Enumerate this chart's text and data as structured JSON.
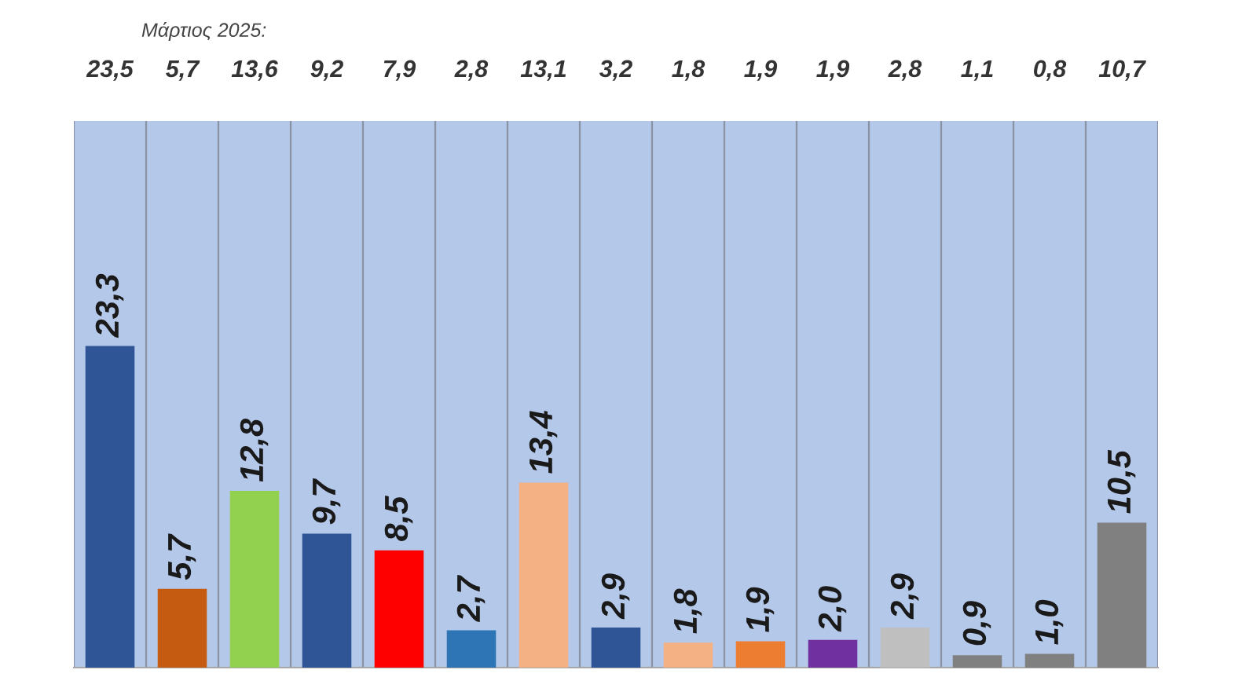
{
  "chart_data": {
    "type": "bar",
    "categories": [
      null,
      null,
      null,
      null,
      null,
      null,
      null,
      null,
      null,
      null,
      null,
      null,
      null,
      null,
      null
    ],
    "values": [
      23.3,
      5.7,
      12.8,
      9.7,
      8.5,
      2.7,
      13.4,
      2.9,
      1.8,
      1.9,
      2.0,
      2.9,
      0.9,
      1.0,
      10.5
    ],
    "colors": [
      "#2f5597",
      "#c55a11",
      "#92d050",
      "#2f5597",
      "#ff0000",
      "#2e75b6",
      "#f4b183",
      "#2f5597",
      "#f4b183",
      "#ed7d31",
      "#7030a0",
      "#bfbfbf",
      "#808080",
      "#808080",
      "#808080"
    ],
    "value_labels": [
      "23,3",
      "5,7",
      "12,8",
      "9,7",
      "8,5",
      "2,7",
      "13,4",
      "2,9",
      "1,8",
      "1,9",
      "2,0",
      "2,9",
      "0,9",
      "1,0",
      "10,5"
    ],
    "grid": "x",
    "annotations": [
      "Μάρτιος 2025:",
      "23,5",
      "5,7",
      "13,6",
      "9,2",
      "7,9",
      "2,8",
      "13,1",
      "3,2",
      "1,8",
      "1,9",
      "1,9",
      "2,8",
      "1,1",
      "0,8",
      "10,7"
    ]
  }
}
